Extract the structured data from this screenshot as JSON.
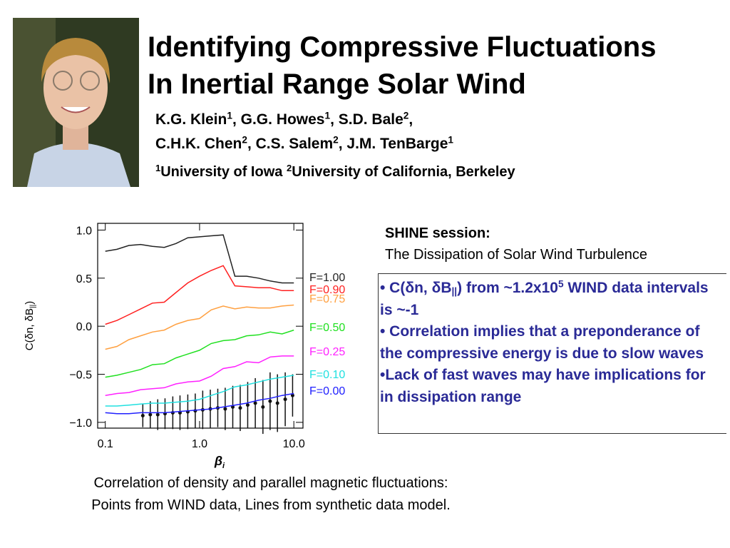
{
  "title_lines": [
    "Identifying Compressive Fluctuations",
    "In Inertial Range Solar Wind"
  ],
  "author_lines": [
    [
      {
        "text": "K.G.  Klein"
      },
      {
        "sup": "1"
      },
      {
        "text": ", G.G. Howes"
      },
      {
        "sup": "1"
      },
      {
        "text": ", S.D. Bale"
      },
      {
        "sup": "2"
      },
      {
        "text": ","
      }
    ],
    [
      {
        "text": "C.H.K. Chen"
      },
      {
        "sup": "2"
      },
      {
        "text": ", C.S. Salem"
      },
      {
        "sup": "2"
      },
      {
        "text": ", J.M. TenBarge"
      },
      {
        "sup": "1"
      }
    ]
  ],
  "affiliation": [
    {
      "sup": "1"
    },
    {
      "text": "University of Iowa  "
    },
    {
      "sup": "2"
    },
    {
      "text": "University of California, Berkeley"
    }
  ],
  "session_label": "SHINE session:",
  "session_title": "The Dissipation of Solar Wind Turbulence",
  "bullets": [
    [
      {
        "text": "• C(δn, δB"
      },
      {
        "sub": "||"
      },
      {
        "text": ") from ~1.2x10"
      },
      {
        "sup": "5"
      },
      {
        "text": " WIND data intervals is ~-1"
      }
    ],
    [
      {
        "text": "• Correlation implies that a preponderance of the compressive energy is due to slow waves"
      }
    ],
    [
      {
        "text": "•Lack of fast waves may have implications for in dissipation range"
      }
    ]
  ],
  "caption_lines": [
    "Correlation of density and parallel magnetic fluctuations:",
    "Points from WIND data, Lines from synthetic data model."
  ],
  "chart_data": {
    "type": "line",
    "xlabel": "β",
    "xlabel_sub": "i",
    "ylabel": "C(δn, δB",
    "ylabel_sub": "||",
    "ylabel_end": ")",
    "log_x": true,
    "xlim": [
      0.083,
      12.5
    ],
    "ylim": [
      -1.06,
      1.07
    ],
    "xticks": [
      0.1,
      {
        "value": 1,
        "label": "1.0"
      },
      {
        "value": 10,
        "label": "10.0"
      }
    ],
    "yticks": [
      {
        "value": -1,
        "label": "−1.0"
      },
      {
        "value": -0.5,
        "label": "−0.5"
      },
      {
        "value": 0,
        "label": "0.0"
      },
      {
        "value": 0.5,
        "label": "0.5"
      },
      {
        "value": 1,
        "label": "1.0"
      }
    ],
    "x": [
      0.1,
      0.133,
      0.178,
      0.237,
      0.316,
      0.422,
      0.562,
      0.75,
      1.0,
      1.33,
      1.78,
      2.37,
      3.16,
      4.22,
      5.62,
      7.5,
      10.0
    ],
    "series": [
      {
        "name": "F=1.00",
        "color": "#222222",
        "values": [
          0.78,
          0.8,
          0.84,
          0.85,
          0.83,
          0.82,
          0.86,
          0.92,
          0.93,
          0.94,
          0.95,
          0.52,
          0.52,
          0.5,
          0.47,
          0.45,
          0.45
        ]
      },
      {
        "name": "F=0.90",
        "color": "#ff2020",
        "values": [
          0.02,
          0.06,
          0.12,
          0.18,
          0.24,
          0.25,
          0.35,
          0.45,
          0.52,
          0.58,
          0.63,
          0.42,
          0.41,
          0.4,
          0.4,
          0.37,
          0.37
        ]
      },
      {
        "name": "F=0.75",
        "color": "#ffa040",
        "values": [
          -0.24,
          -0.21,
          -0.14,
          -0.1,
          -0.06,
          -0.04,
          0.02,
          0.06,
          0.08,
          0.17,
          0.21,
          0.18,
          0.2,
          0.19,
          0.19,
          0.21,
          0.22
        ]
      },
      {
        "name": "F=0.50",
        "color": "#20e020",
        "values": [
          -0.53,
          -0.51,
          -0.48,
          -0.45,
          -0.4,
          -0.39,
          -0.33,
          -0.29,
          -0.25,
          -0.18,
          -0.15,
          -0.14,
          -0.1,
          -0.09,
          -0.06,
          -0.08,
          -0.04
        ]
      },
      {
        "name": "F=0.25",
        "color": "#ff20ff",
        "values": [
          -0.72,
          -0.7,
          -0.69,
          -0.66,
          -0.65,
          -0.64,
          -0.6,
          -0.58,
          -0.57,
          -0.52,
          -0.44,
          -0.42,
          -0.37,
          -0.38,
          -0.32,
          -0.31,
          -0.31
        ]
      },
      {
        "name": "F=0.10",
        "color": "#20e0e0",
        "values": [
          -0.83,
          -0.83,
          -0.82,
          -0.81,
          -0.8,
          -0.8,
          -0.79,
          -0.78,
          -0.76,
          -0.72,
          -0.68,
          -0.63,
          -0.61,
          -0.58,
          -0.55,
          -0.53,
          -0.51
        ]
      },
      {
        "name": "F=0.00",
        "color": "#2020ff",
        "values": [
          -0.9,
          -0.91,
          -0.91,
          -0.9,
          -0.9,
          -0.9,
          -0.89,
          -0.88,
          -0.87,
          -0.86,
          -0.84,
          -0.82,
          -0.8,
          -0.77,
          -0.75,
          -0.72,
          -0.7
        ]
      }
    ],
    "data_points": {
      "color": "#111111",
      "x": [
        0.25,
        0.3,
        0.36,
        0.43,
        0.52,
        0.62,
        0.75,
        0.9,
        1.08,
        1.3,
        1.56,
        1.87,
        2.25,
        2.7,
        3.24,
        3.9,
        4.7,
        5.6,
        6.7,
        8.1,
        9.7
      ],
      "values": [
        -0.93,
        -0.92,
        -0.92,
        -0.91,
        -0.9,
        -0.9,
        -0.89,
        -0.88,
        -0.87,
        -0.86,
        -0.85,
        -0.86,
        -0.84,
        -0.85,
        -0.82,
        -0.8,
        -0.84,
        -0.78,
        -0.8,
        -0.76,
        -0.72
      ],
      "errors": [
        0.12,
        0.14,
        0.16,
        0.16,
        0.17,
        0.18,
        0.18,
        0.18,
        0.2,
        0.2,
        0.2,
        0.22,
        0.22,
        0.24,
        0.24,
        0.26,
        0.28,
        0.3,
        0.3,
        0.28,
        0.22
      ]
    }
  }
}
